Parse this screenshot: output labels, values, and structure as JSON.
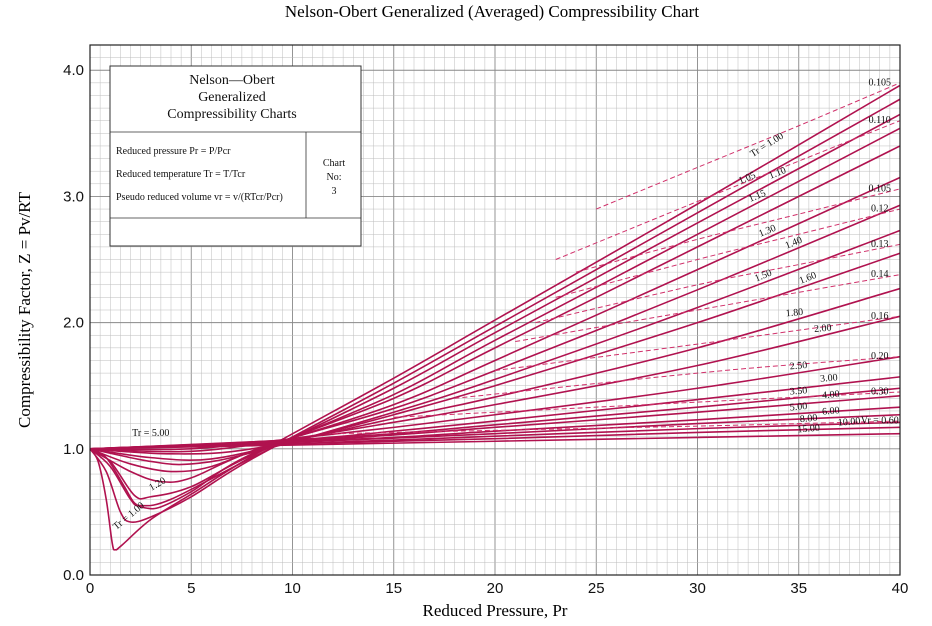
{
  "chart_data": {
    "type": "line",
    "title": "Nelson-Obert Generalized (Averaged) Compressibility Chart",
    "xlabel": "Reduced Pressure, Pr",
    "ylabel": "Compressibility Factor, Z = Pv/RT",
    "xlim": [
      0,
      40
    ],
    "ylim": [
      0,
      4.2
    ],
    "x_ticks": [
      "0",
      "5",
      "10",
      "15",
      "20",
      "25",
      "30",
      "35",
      "40"
    ],
    "y_ticks": [
      "0.0",
      "1.0",
      "2.0",
      "3.0",
      "4.0"
    ],
    "grid": true,
    "info_box": {
      "title_lines": [
        "Nelson—Obert",
        "Generalized",
        "Compressibility Charts"
      ],
      "definitions": [
        "Reduced pressure Pr = P/Pcr",
        "Reduced temperature Tr = T/Tcr",
        "Pseudo reduced volume vr = v/(RTcr/Pcr)"
      ],
      "chart_no_label": [
        "Chart",
        "No:"
      ],
      "chart_no": "3"
    },
    "temperature_series": [
      {
        "label": "Tr = 1.00",
        "points": [
          [
            0,
            1
          ],
          [
            0.4,
            0.9
          ],
          [
            0.8,
            0.6
          ],
          [
            1.1,
            0.25
          ],
          [
            1.25,
            0.2
          ],
          [
            1.6,
            0.24
          ],
          [
            3,
            0.44
          ],
          [
            5,
            0.64
          ],
          [
            8,
            0.94
          ],
          [
            15,
            1.56
          ],
          [
            20,
            2.02
          ],
          [
            30,
            2.94
          ],
          [
            40,
            3.88
          ]
        ]
      },
      {
        "label": "1.05",
        "points": [
          [
            0,
            1
          ],
          [
            0.8,
            0.82
          ],
          [
            1.5,
            0.5
          ],
          [
            2,
            0.42
          ],
          [
            3,
            0.46
          ],
          [
            5,
            0.62
          ],
          [
            8,
            0.92
          ],
          [
            15,
            1.52
          ],
          [
            20,
            1.97
          ],
          [
            30,
            2.87
          ],
          [
            40,
            3.77
          ]
        ]
      },
      {
        "label": "1.10",
        "points": [
          [
            0,
            1
          ],
          [
            1,
            0.86
          ],
          [
            2,
            0.6
          ],
          [
            2.5,
            0.55
          ],
          [
            4,
            0.6
          ],
          [
            8,
            0.93
          ],
          [
            15,
            1.48
          ],
          [
            20,
            1.92
          ],
          [
            30,
            2.79
          ],
          [
            40,
            3.65
          ]
        ]
      },
      {
        "label": "1.15",
        "points": [
          [
            0,
            1
          ],
          [
            1,
            0.9
          ],
          [
            2.2,
            0.63
          ],
          [
            3,
            0.62
          ],
          [
            5,
            0.7
          ],
          [
            8,
            0.95
          ],
          [
            15,
            1.43
          ],
          [
            20,
            1.86
          ],
          [
            30,
            2.7
          ],
          [
            40,
            3.54
          ]
        ]
      },
      {
        "label": "1.20",
        "points": [
          [
            0,
            1
          ],
          [
            0.8,
            0.93
          ],
          [
            1.7,
            0.7
          ],
          [
            2.2,
            0.57
          ],
          [
            2.8,
            0.53
          ],
          [
            3.5,
            0.54
          ],
          [
            5,
            0.66
          ],
          [
            8,
            0.96
          ],
          [
            15,
            1.4
          ],
          [
            20,
            1.8
          ],
          [
            30,
            2.6
          ],
          [
            40,
            3.4
          ]
        ]
      },
      {
        "label": "1.30",
        "points": [
          [
            0,
            1
          ],
          [
            2,
            0.82
          ],
          [
            3.5,
            0.74
          ],
          [
            5,
            0.77
          ],
          [
            8,
            0.98
          ],
          [
            15,
            1.35
          ],
          [
            20,
            1.7
          ],
          [
            30,
            2.42
          ],
          [
            40,
            3.15
          ]
        ]
      },
      {
        "label": "1.40",
        "points": [
          [
            0,
            1
          ],
          [
            2,
            0.88
          ],
          [
            4,
            0.82
          ],
          [
            6,
            0.86
          ],
          [
            9,
            1.04
          ],
          [
            15,
            1.32
          ],
          [
            20,
            1.62
          ],
          [
            30,
            2.26
          ],
          [
            40,
            2.93
          ]
        ]
      },
      {
        "label": "1.50",
        "points": [
          [
            0,
            1
          ],
          [
            3,
            0.9
          ],
          [
            5,
            0.88
          ],
          [
            8,
            0.97
          ],
          [
            15,
            1.29
          ],
          [
            20,
            1.55
          ],
          [
            30,
            2.12
          ],
          [
            40,
            2.73
          ]
        ]
      },
      {
        "label": "1.60",
        "points": [
          [
            0,
            1
          ],
          [
            3,
            0.93
          ],
          [
            6,
            0.92
          ],
          [
            10,
            1.06
          ],
          [
            15,
            1.27
          ],
          [
            20,
            1.5
          ],
          [
            30,
            2.0
          ],
          [
            40,
            2.55
          ]
        ]
      },
      {
        "label": "1.80",
        "points": [
          [
            0,
            1
          ],
          [
            4,
            0.96
          ],
          [
            8,
            1.0
          ],
          [
            15,
            1.24
          ],
          [
            20,
            1.41
          ],
          [
            30,
            1.8
          ],
          [
            40,
            2.27
          ]
        ]
      },
      {
        "label": "2.00",
        "points": [
          [
            0,
            1
          ],
          [
            5,
            0.98
          ],
          [
            10,
            1.08
          ],
          [
            15,
            1.21
          ],
          [
            20,
            1.35
          ],
          [
            30,
            1.66
          ],
          [
            40,
            2.05
          ]
        ]
      },
      {
        "label": "2.50",
        "points": [
          [
            0,
            1
          ],
          [
            5,
            1.0
          ],
          [
            10,
            1.08
          ],
          [
            15,
            1.17
          ],
          [
            20,
            1.27
          ],
          [
            30,
            1.48
          ],
          [
            40,
            1.73
          ]
        ]
      },
      {
        "label": "3.00",
        "points": [
          [
            0,
            1
          ],
          [
            10,
            1.07
          ],
          [
            15,
            1.14
          ],
          [
            20,
            1.22
          ],
          [
            30,
            1.39
          ],
          [
            40,
            1.57
          ]
        ]
      },
      {
        "label": "3.50",
        "points": [
          [
            0,
            1
          ],
          [
            10,
            1.07
          ],
          [
            15,
            1.12
          ],
          [
            20,
            1.19
          ],
          [
            30,
            1.33
          ],
          [
            40,
            1.48
          ]
        ]
      },
      {
        "label": "4.00",
        "points": [
          [
            0,
            1
          ],
          [
            10,
            1.06
          ],
          [
            15,
            1.11
          ],
          [
            20,
            1.17
          ],
          [
            30,
            1.29
          ],
          [
            40,
            1.42
          ]
        ]
      },
      {
        "label": "5.00",
        "points": [
          [
            0,
            1
          ],
          [
            10,
            1.06
          ],
          [
            15,
            1.09
          ],
          [
            20,
            1.14
          ],
          [
            30,
            1.23
          ],
          [
            40,
            1.33
          ]
        ]
      },
      {
        "label": "6.00",
        "points": [
          [
            0,
            1
          ],
          [
            10,
            1.05
          ],
          [
            20,
            1.12
          ],
          [
            30,
            1.2
          ],
          [
            40,
            1.27
          ]
        ]
      },
      {
        "label": "8.00",
        "points": [
          [
            0,
            1
          ],
          [
            10,
            1.04
          ],
          [
            20,
            1.1
          ],
          [
            30,
            1.16
          ],
          [
            40,
            1.21
          ]
        ]
      },
      {
        "label": "10.00",
        "points": [
          [
            0,
            1
          ],
          [
            10,
            1.04
          ],
          [
            20,
            1.08
          ],
          [
            30,
            1.13
          ],
          [
            40,
            1.17
          ]
        ]
      },
      {
        "label": "15.00",
        "points": [
          [
            0,
            1
          ],
          [
            10,
            1.03
          ],
          [
            20,
            1.06
          ],
          [
            30,
            1.09
          ],
          [
            40,
            1.12
          ]
        ]
      }
    ],
    "volume_series": [
      {
        "label": "0.105",
        "points": [
          [
            25,
            2.9
          ],
          [
            30,
            3.23
          ],
          [
            35,
            3.56
          ],
          [
            40,
            3.9
          ]
        ]
      },
      {
        "label": "0.110",
        "points": [
          [
            23,
            2.5
          ],
          [
            30,
            2.96
          ],
          [
            35,
            3.28
          ],
          [
            40,
            3.6
          ]
        ]
      },
      {
        "label": "0.105",
        "points": [
          [
            24,
            2.4
          ],
          [
            30,
            2.66
          ],
          [
            35,
            2.86
          ],
          [
            40,
            3.06
          ]
        ]
      },
      {
        "label": "0.12",
        "points": [
          [
            23,
            2.2
          ],
          [
            30,
            2.5
          ],
          [
            35,
            2.7
          ],
          [
            40,
            2.9
          ]
        ]
      },
      {
        "label": "0.13",
        "points": [
          [
            22,
            2.0
          ],
          [
            30,
            2.3
          ],
          [
            35,
            2.46
          ],
          [
            40,
            2.62
          ]
        ]
      },
      {
        "label": "0.14",
        "points": [
          [
            21,
            1.85
          ],
          [
            30,
            2.1
          ],
          [
            35,
            2.24
          ],
          [
            40,
            2.38
          ]
        ]
      },
      {
        "label": "0.16",
        "points": [
          [
            20,
            1.62
          ],
          [
            30,
            1.83
          ],
          [
            35,
            1.94
          ],
          [
            40,
            2.05
          ]
        ]
      },
      {
        "label": "0.20",
        "points": [
          [
            18,
            1.4
          ],
          [
            30,
            1.6
          ],
          [
            35,
            1.67
          ],
          [
            40,
            1.73
          ]
        ]
      },
      {
        "label": "0.30",
        "points": [
          [
            15,
            1.25
          ],
          [
            30,
            1.37
          ],
          [
            35,
            1.41
          ],
          [
            40,
            1.45
          ]
        ]
      },
      {
        "label": "Vr = 0.60",
        "points": [
          [
            12,
            1.12
          ],
          [
            30,
            1.18
          ],
          [
            35,
            1.2
          ],
          [
            40,
            1.22
          ]
        ]
      }
    ]
  }
}
